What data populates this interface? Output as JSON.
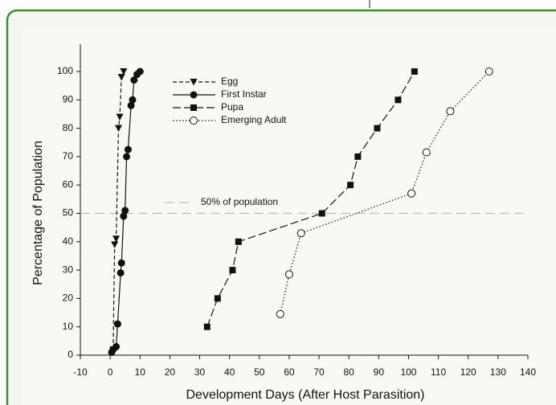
{
  "chart_data": {
    "type": "line",
    "x_label": "Development Days (After Host Parasition)",
    "y_label": "Percentage of Population",
    "xlim": [
      -10,
      140
    ],
    "xticks": [
      -10,
      0,
      10,
      20,
      30,
      40,
      50,
      60,
      70,
      80,
      90,
      100,
      110,
      120,
      130,
      140
    ],
    "ylim": [
      0,
      100
    ],
    "yticks": [
      0,
      10,
      20,
      30,
      40,
      50,
      60,
      70,
      80,
      90,
      100
    ],
    "legend": "upper left",
    "reference_line": {
      "y": 50,
      "label": "50% of population",
      "color": "#bbbbbb"
    },
    "series": [
      {
        "name": "Egg",
        "color": "#111111",
        "marker": "triangle-down",
        "dash": "short-dash",
        "x": [
          1,
          1.5,
          2,
          2.8,
          3.2,
          3.8,
          4.5
        ],
        "values": [
          2,
          39,
          41,
          80,
          84,
          98,
          100
        ]
      },
      {
        "name": "First Instar",
        "color": "#111111",
        "marker": "circle",
        "dash": "solid",
        "x": [
          0.5,
          1,
          2,
          2.5,
          3.5,
          3.8,
          4.5,
          5,
          5.5,
          6,
          7,
          7.5,
          8,
          9,
          10
        ],
        "values": [
          1,
          2,
          3,
          11,
          29,
          32.5,
          49,
          51,
          70,
          72.5,
          88,
          90,
          97,
          99,
          100
        ]
      },
      {
        "name": "Pupa",
        "color": "#111111",
        "marker": "square",
        "dash": "long-dash",
        "x": [
          32.5,
          36,
          41,
          43,
          71,
          80.5,
          83,
          89.5,
          96.5,
          102
        ],
        "values": [
          10,
          20,
          30,
          40,
          50,
          60,
          70,
          80,
          90,
          100
        ]
      },
      {
        "name": "Emerging Adult",
        "color": "#111111",
        "marker": "open-circle",
        "dash": "dotted",
        "x": [
          57,
          60,
          64,
          101,
          106,
          114,
          127
        ],
        "values": [
          14.5,
          28.5,
          43,
          57,
          71.5,
          86,
          100
        ]
      }
    ]
  }
}
